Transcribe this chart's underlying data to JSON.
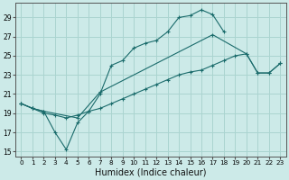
{
  "xlabel": "Humidex (Indice chaleur)",
  "bg_color": "#cceae8",
  "grid_color": "#aad4d0",
  "line_color": "#1a6b6b",
  "xlim": [
    -0.5,
    23.5
  ],
  "ylim": [
    14.5,
    30.5
  ],
  "xticks": [
    0,
    1,
    2,
    3,
    4,
    5,
    6,
    7,
    8,
    9,
    10,
    11,
    12,
    13,
    14,
    15,
    16,
    17,
    18,
    19,
    20,
    21,
    22,
    23
  ],
  "yticks": [
    15,
    17,
    19,
    21,
    23,
    25,
    27,
    29
  ],
  "line1_x": [
    0,
    1,
    2,
    3,
    4,
    5,
    6,
    7,
    8,
    9,
    10,
    11,
    12,
    13,
    14,
    15,
    16,
    17,
    18,
    19,
    20,
    21,
    22,
    23
  ],
  "line1_y": [
    20.0,
    19.5,
    19.2,
    17.0,
    15.2,
    18.0,
    19.2,
    21.0,
    24.0,
    24.5,
    25.8,
    26.3,
    26.6,
    27.5,
    29.0,
    29.2,
    29.8,
    29.3,
    27.5,
    null,
    null,
    null,
    null,
    null
  ],
  "line2_x": [
    0,
    1,
    2,
    3,
    4,
    5,
    6,
    7,
    8,
    9,
    10,
    11,
    12,
    13,
    14,
    15,
    16,
    17,
    18,
    19,
    20,
    21,
    22,
    23
  ],
  "line2_y": [
    20.0,
    19.5,
    19.2,
    null,
    null,
    18.5,
    null,
    21.2,
    null,
    null,
    null,
    null,
    null,
    null,
    null,
    null,
    null,
    27.2,
    null,
    null,
    25.2,
    23.2,
    23.2,
    24.2
  ],
  "line3_x": [
    0,
    1,
    2,
    3,
    4,
    5,
    6,
    7,
    8,
    9,
    10,
    11,
    12,
    13,
    14,
    15,
    16,
    17,
    18,
    19,
    20,
    21,
    22,
    23
  ],
  "line3_y": [
    20.0,
    19.5,
    19.0,
    18.8,
    18.5,
    18.8,
    19.2,
    19.5,
    20.0,
    20.5,
    21.0,
    21.5,
    22.0,
    22.5,
    23.0,
    23.3,
    23.5,
    24.0,
    24.5,
    25.0,
    25.2,
    23.2,
    23.2,
    24.2
  ]
}
